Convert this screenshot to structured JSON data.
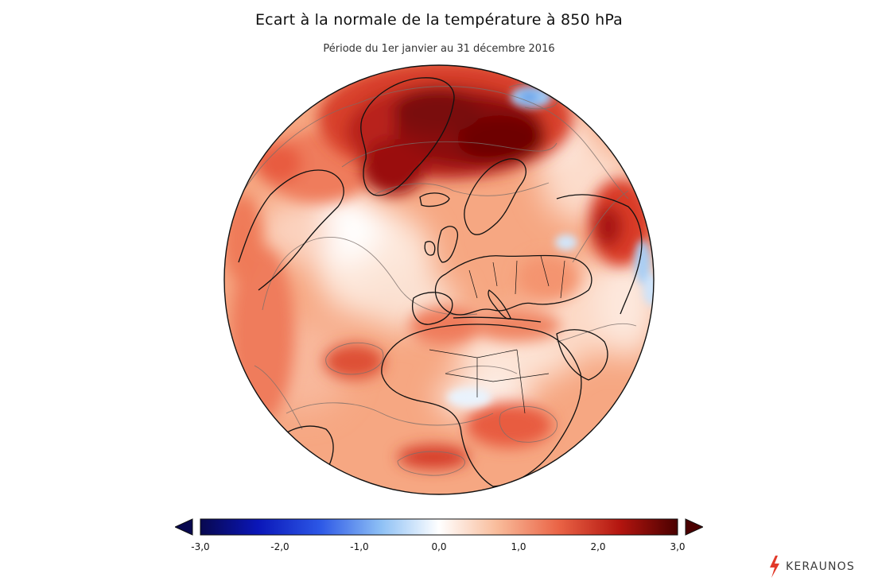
{
  "title": "Ecart à la normale de la température à 850 hPa",
  "subtitle": "Période du 1er janvier au 31 décembre 2016",
  "colors": {
    "cold_extreme": "#08084f",
    "cold": "#1f3fd6",
    "cool": "#8fc1f5",
    "neutral": "#ffffff",
    "warm": "#f7a07b",
    "hot": "#c8281c",
    "hot_extreme": "#5a0000",
    "ocean_outline": "#222222"
  },
  "colorbar": {
    "min": -3.0,
    "max": 3.0,
    "ticks": [
      "-3,0",
      "-2,0",
      "-1,0",
      "0,0",
      "1,0",
      "2,0",
      "3,0"
    ],
    "tick_values": [
      -3,
      -2,
      -1,
      0,
      1,
      2,
      3
    ]
  },
  "logo": {
    "text": "KERAUNOS",
    "icon": "lightning-bolt-icon"
  }
}
